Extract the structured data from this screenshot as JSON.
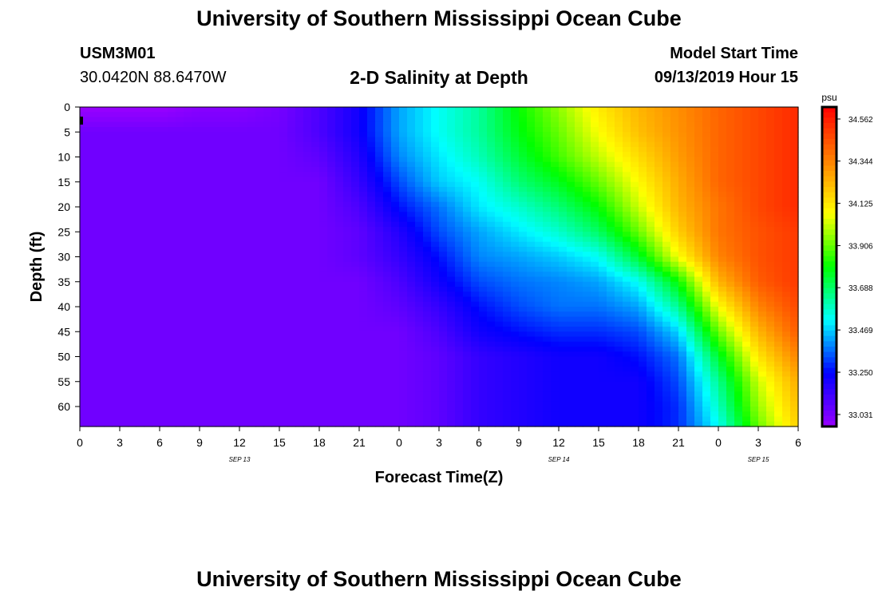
{
  "header": {
    "title": "University of Southern Mississippi Ocean Cube",
    "station_id": "USM3M01",
    "location": "30.0420N 88.6470W",
    "plot_title": "2-D Salinity at Depth",
    "model_label": "Model Start Time",
    "model_time": "09/13/2019 Hour 15"
  },
  "footer": {
    "title": "University of Southern Mississippi Ocean Cube"
  },
  "colorbar": {
    "unit": "psu",
    "labels": [
      "34.562",
      "34.344",
      "34.125",
      "33.906",
      "33.688",
      "33.469",
      "33.250",
      "33.031"
    ],
    "colors": [
      "#9900ff",
      "#0000ff",
      "#00ffff",
      "#00ff00",
      "#ffff00",
      "#ff8000",
      "#ff0000"
    ]
  },
  "chart_data": {
    "type": "heatmap",
    "title": "2-D Salinity at Depth",
    "xlabel": "Forecast Time(Z)",
    "ylabel": "Depth (ft)",
    "x_ticks": [
      "0",
      "3",
      "6",
      "9",
      "12",
      "15",
      "18",
      "21",
      "0",
      "3",
      "6",
      "9",
      "12",
      "15",
      "18",
      "21",
      "0",
      "3",
      "6"
    ],
    "date_labels": [
      {
        "label": "SEP 13",
        "tick_index": 4
      },
      {
        "label": "SEP 14",
        "tick_index": 12
      },
      {
        "label": "SEP 15",
        "tick_index": 17
      }
    ],
    "xlim": [
      0,
      54
    ],
    "y_ticks": [
      0,
      5,
      10,
      15,
      20,
      25,
      30,
      35,
      40,
      45,
      50,
      55,
      60
    ],
    "ylim": [
      0,
      64
    ],
    "value_range": [
      33.031,
      34.562
    ],
    "grid_times": [
      0,
      3,
      6,
      9,
      12,
      15,
      18,
      21,
      24,
      27,
      30,
      33,
      36,
      39,
      42,
      45,
      48,
      51,
      54
    ],
    "grid_depths": [
      0,
      5,
      10,
      15,
      20,
      25,
      30,
      35,
      40,
      45,
      50,
      55,
      60,
      64
    ],
    "values": [
      [
        33.03,
        33.03,
        33.03,
        33.06,
        33.06,
        33.09,
        33.16,
        33.26,
        33.45,
        33.55,
        33.64,
        33.8,
        33.94,
        34.09,
        34.2,
        34.28,
        34.36,
        34.42,
        34.48
      ],
      [
        33.1,
        33.1,
        33.1,
        33.1,
        33.1,
        33.1,
        33.16,
        33.26,
        33.45,
        33.55,
        33.64,
        33.78,
        33.9,
        34.05,
        34.18,
        34.27,
        34.36,
        34.42,
        34.48
      ],
      [
        33.1,
        33.1,
        33.1,
        33.1,
        33.1,
        33.1,
        33.13,
        33.23,
        33.42,
        33.52,
        33.61,
        33.74,
        33.86,
        33.99,
        34.12,
        34.25,
        34.36,
        34.42,
        34.48
      ],
      [
        33.1,
        33.1,
        33.1,
        33.1,
        33.1,
        33.1,
        33.1,
        33.2,
        33.36,
        33.49,
        33.55,
        33.68,
        33.77,
        33.9,
        34.06,
        34.22,
        34.36,
        34.42,
        34.48
      ],
      [
        33.1,
        33.1,
        33.1,
        33.1,
        33.1,
        33.1,
        33.1,
        33.16,
        33.3,
        33.4,
        33.52,
        33.59,
        33.68,
        33.8,
        34.0,
        34.2,
        34.33,
        34.42,
        34.48
      ],
      [
        33.1,
        33.1,
        33.1,
        33.1,
        33.1,
        33.1,
        33.1,
        33.13,
        33.23,
        33.36,
        33.45,
        33.52,
        33.59,
        33.7,
        33.9,
        34.15,
        34.33,
        34.4,
        34.45
      ],
      [
        33.1,
        33.1,
        33.1,
        33.1,
        33.1,
        33.1,
        33.1,
        33.13,
        33.2,
        33.3,
        33.42,
        33.45,
        33.49,
        33.55,
        33.75,
        34.05,
        34.3,
        34.4,
        34.45
      ],
      [
        33.1,
        33.1,
        33.1,
        33.1,
        33.1,
        33.1,
        33.1,
        33.1,
        33.16,
        33.26,
        33.36,
        33.4,
        33.42,
        33.45,
        33.55,
        33.8,
        34.2,
        34.38,
        34.45
      ],
      [
        33.1,
        33.1,
        33.1,
        33.1,
        33.1,
        33.1,
        33.1,
        33.1,
        33.13,
        33.2,
        33.3,
        33.36,
        33.4,
        33.4,
        33.45,
        33.65,
        34.05,
        34.3,
        34.42
      ],
      [
        33.1,
        33.1,
        33.1,
        33.1,
        33.1,
        33.1,
        33.1,
        33.1,
        33.1,
        33.16,
        33.26,
        33.3,
        33.33,
        33.33,
        33.36,
        33.5,
        33.9,
        34.2,
        34.38
      ],
      [
        33.1,
        33.1,
        33.1,
        33.1,
        33.1,
        33.1,
        33.1,
        33.1,
        33.1,
        33.13,
        33.2,
        33.23,
        33.26,
        33.26,
        33.3,
        33.4,
        33.75,
        34.1,
        34.3
      ],
      [
        33.1,
        33.1,
        33.1,
        33.1,
        33.1,
        33.1,
        33.1,
        33.1,
        33.1,
        33.13,
        33.2,
        33.23,
        33.26,
        33.26,
        33.26,
        33.36,
        33.65,
        34.0,
        34.22
      ],
      [
        33.1,
        33.1,
        33.1,
        33.1,
        33.1,
        33.1,
        33.1,
        33.1,
        33.1,
        33.13,
        33.2,
        33.23,
        33.26,
        33.26,
        33.26,
        33.33,
        33.6,
        33.95,
        34.18
      ],
      [
        33.1,
        33.1,
        33.1,
        33.1,
        33.1,
        33.1,
        33.1,
        33.1,
        33.1,
        33.13,
        33.2,
        33.23,
        33.26,
        33.26,
        33.26,
        33.33,
        33.55,
        33.9,
        34.15
      ]
    ]
  }
}
